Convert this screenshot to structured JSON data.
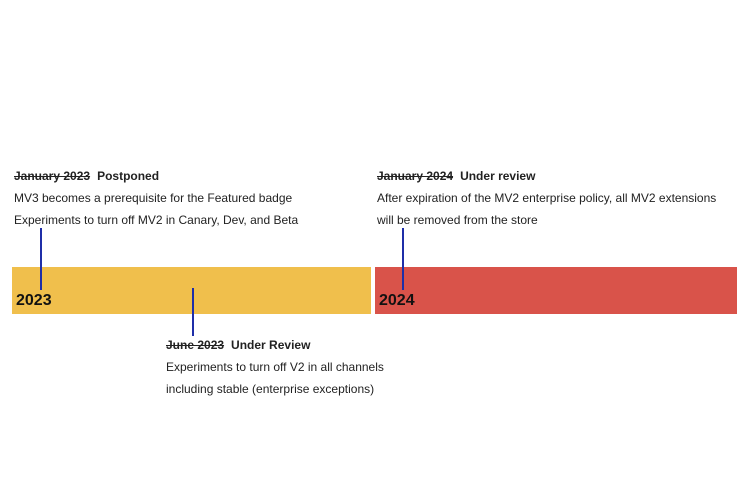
{
  "colors": {
    "bar_2023": "#f0bf4c",
    "bar_2024": "#d9534a",
    "marker": "#1f2ea8"
  },
  "timeline": {
    "segments": [
      {
        "year": "2023"
      },
      {
        "year": "2024"
      }
    ],
    "milestones": [
      {
        "original_date": "January 2023",
        "status": "Postponed",
        "lines": [
          "MV3 becomes a prerequisite for the Featured badge",
          "Experiments to turn off MV2 in Canary, Dev, and Beta"
        ]
      },
      {
        "original_date": "June 2023",
        "status": "Under Review",
        "lines": [
          "Experiments to turn off V2 in all channels",
          "including stable (enterprise exceptions)"
        ]
      },
      {
        "original_date": "January 2024",
        "status": "Under review",
        "lines": [
          "After expiration of the MV2 enterprise policy, all MV2 extensions",
          "will be removed from the store"
        ]
      }
    ]
  }
}
